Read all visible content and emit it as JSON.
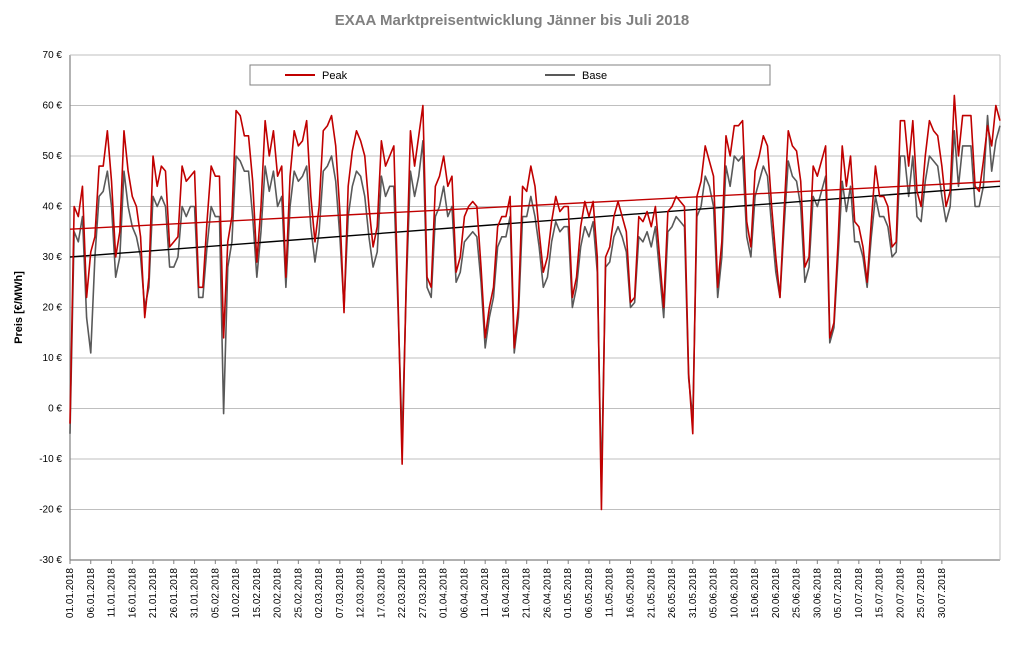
{
  "chart": {
    "type": "line",
    "title": "EXAA Marktpreisentwicklung Jänner bis Juli 2018",
    "title_fontsize": 15,
    "title_color": "#808080",
    "ylabel": "Preis [€/MWh]",
    "ylabel_fontsize": 11,
    "background_color": "#ffffff",
    "grid_color": "#bfbfbf",
    "axis_color": "#808080",
    "ylim": [
      -30,
      70
    ],
    "ytick_step": 10,
    "yticks": [
      "-30 €",
      "-20 €",
      "-10 €",
      "0 €",
      "10 €",
      "20 €",
      "30 €",
      "40 €",
      "50 €",
      "60 €",
      "70 €"
    ],
    "xticks": [
      "01.01.2018",
      "06.01.2018",
      "11.01.2018",
      "16.01.2018",
      "21.01.2018",
      "26.01.2018",
      "31.01.2018",
      "05.02.2018",
      "10.02.2018",
      "15.02.2018",
      "20.02.2018",
      "25.02.2018",
      "02.03.2018",
      "07.03.2018",
      "12.03.2018",
      "17.03.2018",
      "22.03.2018",
      "27.03.2018",
      "01.04.2018",
      "06.04.2018",
      "11.04.2018",
      "16.04.2018",
      "21.04.2018",
      "26.04.2018",
      "01.05.2018",
      "06.05.2018",
      "11.05.2018",
      "16.05.2018",
      "21.05.2018",
      "26.05.2018",
      "31.05.2018",
      "05.06.2018",
      "10.06.2018",
      "15.06.2018",
      "20.06.2018",
      "25.06.2018",
      "30.06.2018",
      "05.07.2018",
      "10.07.2018",
      "15.07.2018",
      "20.07.2018",
      "25.07.2018",
      "30.07.2018"
    ],
    "legend": {
      "items": [
        {
          "label": "Peak",
          "color": "#c00000"
        },
        {
          "label": "Base",
          "color": "#595959"
        }
      ],
      "border_color": "#808080",
      "bg": "#ffffff"
    },
    "series": {
      "peak": {
        "label": "Peak",
        "color": "#c00000",
        "width": 1.6,
        "trend": {
          "start": 35.5,
          "end": 45,
          "color": "#c00000",
          "width": 1.4
        },
        "values": [
          -3,
          40,
          38,
          44,
          22,
          31,
          34,
          48,
          48,
          55,
          45,
          30,
          35,
          55,
          47,
          42,
          40,
          34,
          18,
          26,
          50,
          44,
          48,
          47,
          32,
          33,
          34,
          48,
          45,
          46,
          47,
          24,
          24,
          37,
          48,
          46,
          46,
          14,
          33,
          38,
          59,
          58,
          54,
          54,
          45,
          29,
          40,
          57,
          50,
          55,
          46,
          48,
          26,
          46,
          55,
          52,
          53,
          57,
          42,
          33,
          40,
          55,
          56,
          58,
          52,
          39,
          19,
          44,
          51,
          55,
          53,
          50,
          40,
          32,
          36,
          53,
          48,
          50,
          52,
          22,
          -11,
          26,
          55,
          48,
          54,
          60,
          26,
          24,
          44,
          46,
          50,
          44,
          46,
          27,
          30,
          38,
          40,
          41,
          40,
          28,
          14,
          20,
          24,
          36,
          38,
          38,
          42,
          12,
          20,
          44,
          43,
          48,
          44,
          35,
          27,
          30,
          37,
          42,
          39,
          40,
          40,
          22,
          26,
          36,
          41,
          38,
          41,
          30,
          -20,
          30,
          32,
          38,
          41,
          38,
          35,
          21,
          22,
          38,
          37,
          39,
          36,
          40,
          30,
          20,
          39,
          40,
          42,
          41,
          40,
          7,
          -5,
          42,
          45,
          52,
          49,
          46,
          24,
          33,
          54,
          50,
          56,
          56,
          57,
          37,
          32,
          47,
          50,
          54,
          52,
          40,
          30,
          22,
          39,
          55,
          52,
          51,
          45,
          28,
          30,
          48,
          46,
          49,
          52,
          14,
          17,
          33,
          52,
          44,
          50,
          37,
          36,
          32,
          25,
          37,
          48,
          42,
          42,
          40,
          32,
          33,
          57,
          57,
          48,
          57,
          43,
          40,
          50,
          57,
          55,
          54,
          48,
          40,
          43,
          62,
          50,
          58,
          58,
          58,
          44,
          43,
          49,
          56,
          52,
          60,
          57
        ]
      },
      "base": {
        "label": "Base",
        "color": "#595959",
        "width": 1.6,
        "trend": {
          "start": 30,
          "end": 44,
          "color": "#000000",
          "width": 1.4
        },
        "values": [
          -5,
          35,
          33,
          38,
          18,
          11,
          30,
          42,
          43,
          47,
          40,
          26,
          30,
          47,
          40,
          36,
          34,
          30,
          20,
          24,
          42,
          40,
          42,
          40,
          28,
          28,
          30,
          40,
          38,
          40,
          40,
          22,
          22,
          32,
          40,
          38,
          38,
          -1,
          28,
          33,
          50,
          49,
          47,
          47,
          38,
          26,
          35,
          48,
          43,
          47,
          40,
          42,
          24,
          40,
          47,
          45,
          46,
          48,
          36,
          29,
          35,
          47,
          48,
          50,
          45,
          34,
          20,
          38,
          44,
          47,
          46,
          42,
          34,
          28,
          31,
          46,
          42,
          44,
          44,
          20,
          -6,
          24,
          47,
          42,
          46,
          53,
          24,
          22,
          38,
          40,
          44,
          38,
          40,
          25,
          27,
          33,
          34,
          35,
          34,
          25,
          12,
          18,
          22,
          32,
          34,
          34,
          38,
          11,
          18,
          38,
          38,
          42,
          38,
          32,
          24,
          26,
          33,
          37,
          35,
          36,
          36,
          20,
          24,
          32,
          36,
          34,
          37,
          27,
          -15,
          28,
          29,
          34,
          36,
          34,
          31,
          20,
          21,
          34,
          33,
          35,
          32,
          36,
          27,
          18,
          35,
          36,
          38,
          37,
          36,
          6,
          -2,
          38,
          40,
          46,
          44,
          40,
          22,
          30,
          48,
          44,
          50,
          49,
          50,
          34,
          30,
          42,
          45,
          48,
          46,
          36,
          27,
          22,
          36,
          49,
          46,
          45,
          40,
          25,
          28,
          42,
          40,
          43,
          46,
          13,
          16,
          30,
          45,
          39,
          44,
          33,
          33,
          30,
          24,
          34,
          42,
          38,
          38,
          36,
          30,
          31,
          50,
          50,
          42,
          50,
          38,
          37,
          45,
          50,
          49,
          48,
          42,
          37,
          40,
          55,
          44,
          52,
          52,
          52,
          40,
          40,
          44,
          58,
          47,
          53,
          56
        ]
      }
    }
  }
}
